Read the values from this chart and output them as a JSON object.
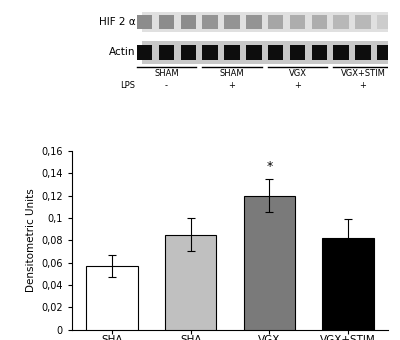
{
  "blot_panel": {
    "hif_label": "HIF 2 α",
    "actin_label": "Actin",
    "group_labels": [
      "SHAM",
      "SHAM",
      "VGX",
      "VGX+STIM"
    ],
    "lps_label": "LPS",
    "lps_values": [
      "-",
      "+",
      "+",
      "+"
    ],
    "hif_band_intensities": [
      0.55,
      0.55,
      0.55,
      0.58,
      0.58,
      0.58,
      0.65,
      0.68,
      0.68,
      0.72,
      0.72,
      0.8
    ],
    "actin_band_intensity": 0.05
  },
  "bar_chart": {
    "categories": [
      "SHA",
      "SHA",
      "VGX",
      "VGX+STIM"
    ],
    "lps_values": [
      "-",
      "+",
      "+",
      "+"
    ],
    "values": [
      0.057,
      0.085,
      0.12,
      0.082
    ],
    "errors": [
      0.01,
      0.015,
      0.015,
      0.017
    ],
    "bar_colors": [
      "#ffffff",
      "#c0c0c0",
      "#7a7a7a",
      "#000000"
    ],
    "bar_edgecolors": [
      "#000000",
      "#000000",
      "#000000",
      "#000000"
    ],
    "ylabel": "Densitometric Units",
    "ylim": [
      0,
      0.16
    ],
    "yticks": [
      0,
      0.02,
      0.04,
      0.06,
      0.08,
      0.1,
      0.12,
      0.14,
      0.16
    ],
    "ytick_labels": [
      "0",
      "0,02",
      "0,04",
      "0,06",
      "0,08",
      "0,1",
      "0,12",
      "0,14",
      "0,16"
    ],
    "significance_bar": 2,
    "significance_label": "*"
  }
}
